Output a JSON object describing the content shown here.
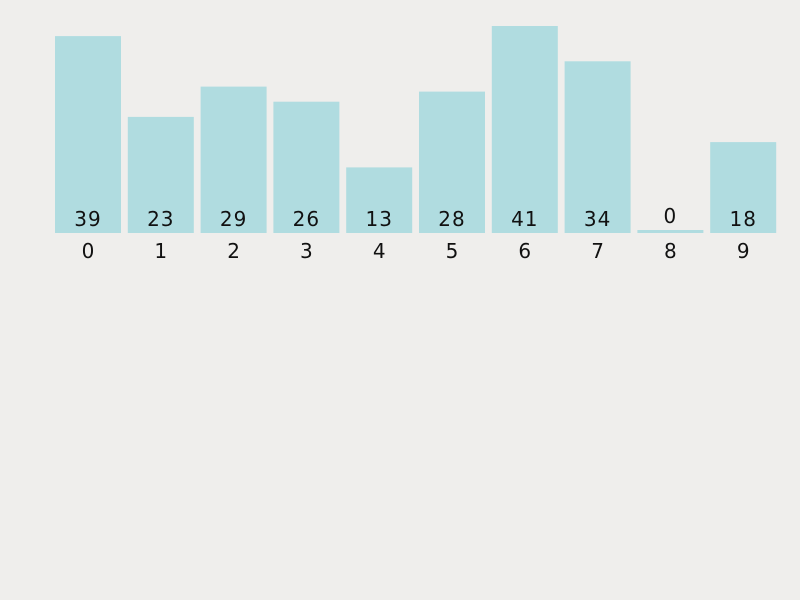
{
  "chart_data": {
    "type": "bar",
    "categories": [
      "0",
      "1",
      "2",
      "3",
      "4",
      "5",
      "6",
      "7",
      "8",
      "9"
    ],
    "values": [
      39,
      23,
      29,
      26,
      13,
      28,
      41,
      34,
      0,
      18
    ],
    "data_labels": [
      "39",
      "23",
      "29",
      "26",
      "13",
      "28",
      "41",
      "34",
      "0",
      "18"
    ],
    "title": "",
    "xlabel": "",
    "ylabel": "",
    "ylim": [
      0,
      41
    ],
    "grid": false,
    "legend": "none",
    "bar_color": "#b0dce0",
    "background": "#efeeec"
  }
}
